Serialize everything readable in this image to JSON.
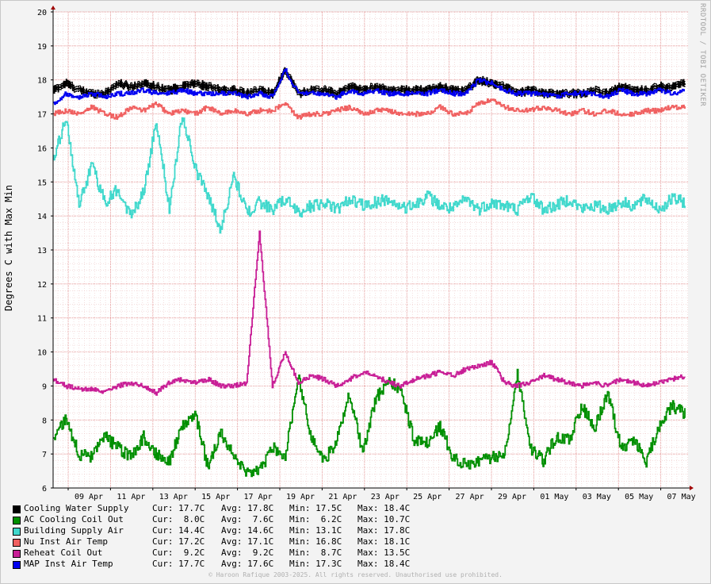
{
  "watermark": "RRDTOOL / TOBI OETIKER",
  "copyright": "© Haroon Rafique 2003-2025. All rights reserved. Unauthorised use prohibited.",
  "chart_data": {
    "type": "line",
    "ylabel": "Degrees C with Max Min",
    "ylim": [
      6,
      20
    ],
    "y_ticks": [
      "6",
      "7",
      "8",
      "9",
      "10",
      "11",
      "12",
      "13",
      "14",
      "15",
      "16",
      "17",
      "18",
      "19",
      "20"
    ],
    "x_ticks": [
      "09 Apr",
      "11 Apr",
      "13 Apr",
      "15 Apr",
      "17 Apr",
      "19 Apr",
      "21 Apr",
      "23 Apr",
      "25 Apr",
      "27 Apr",
      "29 Apr",
      "01 May",
      "03 May",
      "05 May",
      "07 May"
    ],
    "grid": true,
    "legend_placement": "bottom-left",
    "series": [
      {
        "name": "Cooling Water Supply",
        "color": "#000000",
        "style": "minmax",
        "cur": "17.7C",
        "avg": "17.8C",
        "min": "17.5C",
        "max": "18.4C",
        "values": [
          17.7,
          17.9,
          17.7,
          17.6,
          17.6,
          17.9,
          17.8,
          17.9,
          17.8,
          17.7,
          17.8,
          17.9,
          17.8,
          17.7,
          17.7,
          17.6,
          17.7,
          17.6,
          18.3,
          17.6,
          17.7,
          17.7,
          17.6,
          17.8,
          17.7,
          17.8,
          17.7,
          17.7,
          17.7,
          17.7,
          17.8,
          17.7,
          17.7,
          18.0,
          17.9,
          17.8,
          17.6,
          17.7,
          17.6,
          17.6,
          17.6,
          17.6,
          17.7,
          17.6,
          17.8,
          17.7,
          17.7,
          17.8,
          17.8,
          17.9
        ]
      },
      {
        "name": "AC Cooling Coil Out",
        "color": "#008f00",
        "style": "line",
        "cur": "8.0C",
        "avg": "7.6C",
        "min": "6.2C",
        "max": "10.7C",
        "values": [
          7.5,
          8.0,
          7.0,
          6.9,
          7.5,
          7.2,
          6.9,
          7.5,
          7.0,
          6.8,
          7.8,
          8.2,
          6.6,
          7.6,
          7.0,
          6.4,
          6.5,
          7.2,
          6.9,
          9.3,
          7.5,
          6.8,
          7.4,
          8.8,
          7.0,
          8.6,
          9.2,
          8.8,
          7.4,
          7.3,
          7.8,
          6.9,
          6.7,
          6.8,
          6.9,
          7.0,
          9.4,
          7.2,
          6.8,
          7.5,
          7.4,
          8.4,
          7.8,
          8.8,
          7.2,
          7.4,
          6.8,
          7.8,
          8.4,
          8.2
        ]
      },
      {
        "name": "Building Supply Air",
        "color": "#40d8cc",
        "style": "line",
        "cur": "14.4C",
        "avg": "14.6C",
        "min": "13.1C",
        "max": "17.8C",
        "values": [
          15.6,
          16.9,
          14.3,
          15.5,
          14.4,
          14.8,
          14.0,
          14.7,
          16.8,
          14.2,
          17.0,
          15.4,
          14.6,
          13.6,
          15.2,
          14.1,
          14.4,
          14.2,
          14.5,
          14.1,
          14.3,
          14.4,
          14.2,
          14.5,
          14.3,
          14.4,
          14.5,
          14.2,
          14.3,
          14.6,
          14.3,
          14.2,
          14.5,
          14.2,
          14.4,
          14.3,
          14.2,
          14.6,
          14.2,
          14.3,
          14.5,
          14.2,
          14.3,
          14.2,
          14.4,
          14.3,
          14.5,
          14.2,
          14.5,
          14.4
        ]
      },
      {
        "name": "Nu Inst Air Temp",
        "color": "#f06060",
        "style": "line",
        "cur": "17.2C",
        "avg": "17.1C",
        "min": "16.8C",
        "max": "18.1C",
        "values": [
          17.0,
          17.1,
          17.0,
          17.2,
          17.0,
          16.9,
          17.2,
          17.1,
          17.3,
          17.0,
          17.1,
          17.0,
          17.2,
          17.0,
          17.1,
          17.0,
          17.1,
          17.1,
          17.3,
          16.9,
          17.0,
          17.0,
          17.1,
          17.2,
          17.0,
          17.1,
          17.1,
          17.0,
          17.0,
          17.0,
          17.2,
          17.0,
          17.0,
          17.3,
          17.4,
          17.2,
          17.1,
          17.1,
          17.2,
          17.1,
          17.0,
          17.1,
          17.0,
          17.1,
          17.0,
          17.0,
          17.1,
          17.1,
          17.2,
          17.2
        ]
      },
      {
        "name": "Reheat Coil Out",
        "color": "#c81e96",
        "style": "line",
        "cur": "9.2C",
        "avg": "9.2C",
        "min": "8.7C",
        "max": "13.5C",
        "values": [
          9.2,
          9.0,
          8.9,
          8.9,
          8.8,
          9.0,
          9.1,
          9.0,
          8.8,
          9.1,
          9.2,
          9.1,
          9.2,
          9.0,
          9.0,
          9.1,
          13.5,
          9.0,
          10.0,
          9.1,
          9.3,
          9.2,
          9.0,
          9.2,
          9.4,
          9.3,
          9.1,
          9.0,
          9.2,
          9.3,
          9.4,
          9.3,
          9.5,
          9.6,
          9.7,
          9.1,
          9.0,
          9.1,
          9.3,
          9.2,
          9.1,
          9.0,
          9.1,
          9.0,
          9.2,
          9.1,
          9.0,
          9.1,
          9.2,
          9.3
        ]
      },
      {
        "name": "MAP Inst Air Temp",
        "color": "#0000f0",
        "style": "line",
        "cur": "17.7C",
        "avg": "17.6C",
        "min": "17.3C",
        "max": "18.4C",
        "values": [
          17.3,
          17.6,
          17.5,
          17.6,
          17.5,
          17.6,
          17.6,
          17.7,
          17.6,
          17.6,
          17.7,
          17.6,
          17.6,
          17.6,
          17.6,
          17.5,
          17.6,
          17.5,
          18.3,
          17.6,
          17.6,
          17.6,
          17.5,
          17.7,
          17.6,
          17.7,
          17.6,
          17.6,
          17.6,
          17.6,
          17.7,
          17.6,
          17.6,
          18.0,
          17.9,
          17.7,
          17.6,
          17.6,
          17.6,
          17.5,
          17.6,
          17.6,
          17.6,
          17.5,
          17.7,
          17.6,
          17.6,
          17.7,
          17.6,
          17.7
        ]
      }
    ]
  }
}
